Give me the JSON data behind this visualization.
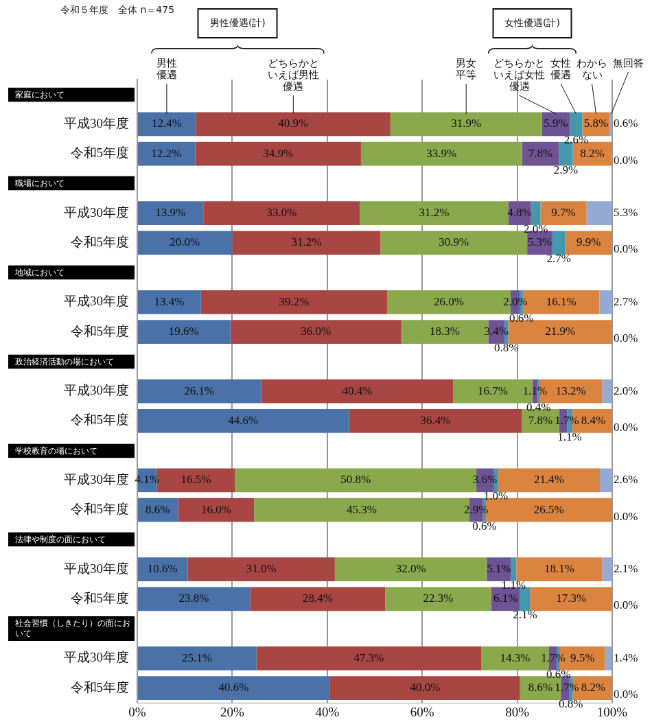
{
  "chart_data": {
    "type": "bar",
    "orientation": "horizontal",
    "stacked": true,
    "subtitle": "令和５年度　全体 n＝475",
    "annotations": [
      "男性優遇(計)",
      "女性優遇(計)",
      "家庭において",
      "職場において",
      "地域において",
      "政治経済活動の場において",
      "学校教育の場において",
      "法律や制度の面において",
      "社会習慣（しきたり）の面において"
    ],
    "categories": [
      null,
      "平成30年度",
      "令和5年度",
      null,
      "平成30年度",
      "令和5年度",
      null,
      "平成30年度",
      "令和5年度",
      null,
      "平成30年度",
      "令和5年度",
      null,
      "平成30年度",
      "令和5年度",
      null,
      "平成30年度",
      "令和5年度",
      null,
      "平成30年度",
      "令和5年度"
    ],
    "series": [
      {
        "name": "男性優遇",
        "color": "#4a72a8",
        "values": [
          null,
          12.4,
          12.2,
          null,
          13.9,
          20.0,
          null,
          13.4,
          19.6,
          null,
          26.1,
          44.6,
          null,
          4.1,
          8.6,
          null,
          10.6,
          23.8,
          null,
          25.1,
          40.6
        ],
        "value_labels": [
          null,
          "12.4%",
          "12.2%",
          null,
          "13.9%",
          "20.0%",
          null,
          "13.4%",
          "19.6%",
          null,
          "26.1%",
          "44.6%",
          null,
          "4.1%",
          "8.6%",
          null,
          "10.6%",
          "23.8%",
          null,
          "25.1%",
          "40.6%"
        ]
      },
      {
        "name": "どちらかといえば男性優遇",
        "color": "#a84644",
        "values": [
          null,
          40.9,
          34.9,
          null,
          33.0,
          31.2,
          null,
          39.2,
          36.0,
          null,
          40.4,
          36.4,
          null,
          16.5,
          16.0,
          null,
          31.0,
          28.4,
          null,
          47.3,
          40.0
        ],
        "value_labels": [
          null,
          "40.9%",
          "34.9%",
          null,
          "33.0%",
          "31.2%",
          null,
          "39.2%",
          "36.0%",
          null,
          "40.4%",
          "36.4%",
          null,
          "16.5%",
          "16.0%",
          null,
          "31.0%",
          "28.4%",
          null,
          "47.3%",
          "40.0%"
        ]
      },
      {
        "name": "男女平等",
        "color": "#8aa84c",
        "values": [
          null,
          31.9,
          33.9,
          null,
          31.2,
          30.9,
          null,
          26.0,
          18.3,
          null,
          16.7,
          7.8,
          null,
          50.8,
          45.3,
          null,
          32.0,
          22.3,
          null,
          14.3,
          8.6
        ],
        "value_labels": [
          null,
          "31.9%",
          "33.9%",
          null,
          "31.2%",
          "30.9%",
          null,
          "26.0%",
          "18.3%",
          null,
          "16.7%",
          "7.8%",
          null,
          "50.8%",
          "45.3%",
          null,
          "32.0%",
          "22.3%",
          null,
          "14.3%",
          "8.6%"
        ]
      },
      {
        "name": "どちらかといえば女性優遇",
        "color": "#6e5494",
        "values": [
          null,
          5.9,
          7.8,
          null,
          4.8,
          5.3,
          null,
          2.0,
          3.4,
          null,
          1.1,
          1.7,
          null,
          3.6,
          2.9,
          null,
          5.1,
          6.1,
          null,
          1.7,
          1.7
        ],
        "value_labels": [
          null,
          "5.9%",
          "7.8%",
          null,
          "4.8%",
          "5.3%",
          null,
          "2.0%",
          "3.4%",
          null,
          "1.1%",
          "1.7%",
          null,
          "3.6%",
          "2.9%",
          null,
          "5.1%",
          "6.1%",
          null,
          "1.7%",
          "1.7%"
        ]
      },
      {
        "name": "女性優遇",
        "color": "#4398ae",
        "values": [
          null,
          2.6,
          2.9,
          null,
          2.0,
          2.7,
          null,
          0.6,
          0.8,
          null,
          0.4,
          1.1,
          null,
          1.0,
          0.6,
          null,
          1.1,
          2.1,
          null,
          0.6,
          0.8
        ],
        "value_labels": [
          null,
          "2.6%",
          "2.9%",
          null,
          "2.0%",
          "2.7%",
          null,
          "0.6%",
          "0.8%",
          null,
          "0.4%",
          "1.1%",
          null,
          "1.0%",
          "0.6%",
          null,
          "1.1%",
          "2.1%",
          null,
          "0.6%",
          "0.8%"
        ]
      },
      {
        "name": "わからない",
        "color": "#db8440",
        "values": [
          null,
          5.8,
          8.2,
          null,
          9.7,
          9.9,
          null,
          16.1,
          21.9,
          null,
          13.2,
          8.4,
          null,
          21.4,
          26.5,
          null,
          18.1,
          17.3,
          null,
          9.5,
          8.2
        ],
        "value_labels": [
          null,
          "5.8%",
          "8.2%",
          null,
          "9.7%",
          "9.9%",
          null,
          "16.1%",
          "21.9%",
          null,
          "13.2%",
          "8.4%",
          null,
          "21.4%",
          "26.5%",
          null,
          "18.1%",
          "17.3%",
          null,
          "9.5%",
          "8.2%"
        ]
      },
      {
        "name": "無回答",
        "color": "#94aad4",
        "values": [
          null,
          0.6,
          0.0,
          null,
          5.3,
          0.0,
          null,
          2.7,
          0.0,
          null,
          2.0,
          0.0,
          null,
          2.6,
          0.0,
          null,
          2.1,
          0.0,
          null,
          1.4,
          0.0
        ],
        "value_labels": [
          null,
          "0.6%",
          "0.0%",
          null,
          "5.3%",
          "0.0%",
          null,
          "2.7%",
          "0.0%",
          null,
          "2.0%",
          "0.0%",
          null,
          "2.6%",
          "0.0%",
          null,
          "2.1%",
          "0.0%",
          null,
          "1.4%",
          "0.0%"
        ]
      }
    ],
    "xlim": [
      0,
      100
    ],
    "xticks": [
      {
        "value": 0,
        "label": "0%"
      },
      {
        "value": 20,
        "label": "20%"
      },
      {
        "value": 40,
        "label": "40%"
      },
      {
        "value": 60,
        "label": "60%"
      },
      {
        "value": 80,
        "label": "80%"
      },
      {
        "value": 100,
        "label": "100%"
      }
    ],
    "grid": "x",
    "legend": false
  }
}
